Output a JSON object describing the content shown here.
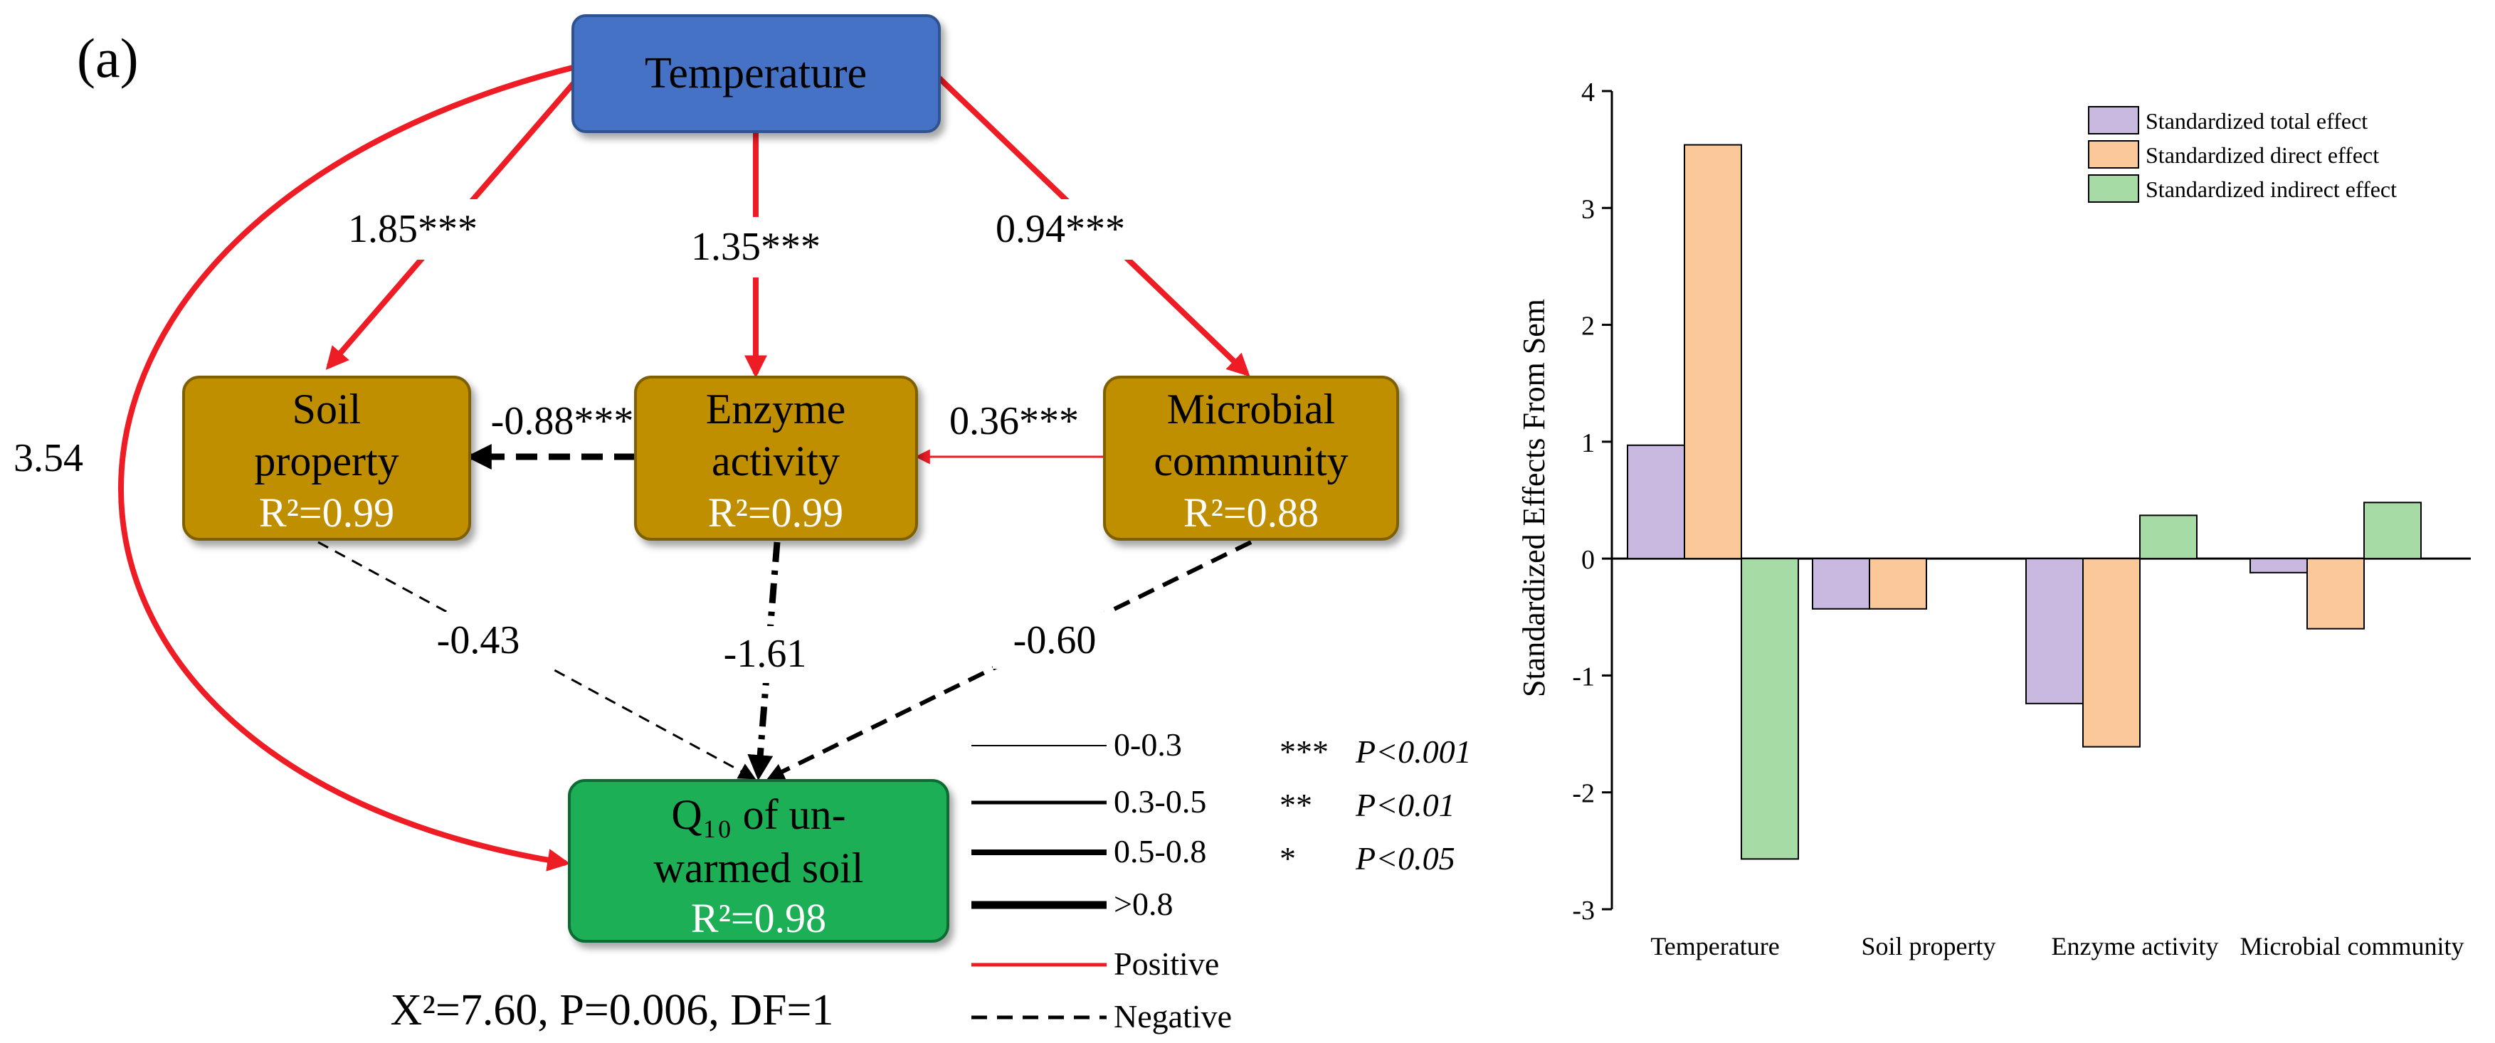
{
  "panel_label": "(a)",
  "colors": {
    "positive": "#ee1c24",
    "negative": "#000000",
    "temperature_box": "#4472c4",
    "mediator_box": "#bf8f00",
    "outcome_box": "#1aaf55"
  },
  "nodes": {
    "temperature": {
      "label": "Temperature"
    },
    "soil": {
      "line1": "Soil",
      "line2": "property",
      "r2": "R²=0.99"
    },
    "enzyme": {
      "line1": "Enzyme",
      "line2": "activity",
      "r2": "R²=0.99"
    },
    "microbial": {
      "line1": "Microbial",
      "line2": "community",
      "r2": "R²=0.88"
    },
    "q10": {
      "line1": "Q₁₀ of un-",
      "line2": "warmed soil",
      "r2": "R²=0.98"
    }
  },
  "paths": {
    "temp_soil": "1.85***",
    "temp_enzyme": "1.35***",
    "temp_microbial": "0.94***",
    "temp_q10": "3.54",
    "enzyme_soil": "-0.88***",
    "microbial_enzyme": "0.36***",
    "soil_q10": "-0.43",
    "enzyme_q10": "-1.61",
    "microbial_q10": "-0.60"
  },
  "fit_stats": "X²=7.60, P=0.006, DF=1",
  "legend": {
    "widths": [
      "0-0.3",
      "0.3-0.5",
      "0.5-0.8",
      ">0.8"
    ],
    "positive": "Positive",
    "negative": "Negative",
    "significance": [
      {
        "stars": "***",
        "p": "P<0.001"
      },
      {
        "stars": "**",
        "p": "P<0.01"
      },
      {
        "stars": "*",
        "p": "P<0.05"
      }
    ]
  },
  "chart_data": {
    "type": "bar",
    "categories": [
      "Temperature",
      "Soil property",
      "Enzyme activity",
      "Microbial community"
    ],
    "series": [
      {
        "name": "Standardized total effect",
        "color": "#c9b8df",
        "values": [
          0.97,
          -0.43,
          -1.24,
          -0.12
        ]
      },
      {
        "name": "Standardized direct effect",
        "color": "#fbc89a",
        "values": [
          3.54,
          -0.43,
          -1.61,
          -0.6
        ]
      },
      {
        "name": "Standardized indirect effect",
        "color": "#a6dba6",
        "values": [
          -2.57,
          null,
          0.37,
          0.48
        ]
      }
    ],
    "ylabel": "Standardized  Effects From Sem",
    "ylim": [
      -3,
      4
    ],
    "yticks": [
      4,
      3,
      2,
      1,
      0,
      -1,
      -2,
      -3
    ]
  }
}
